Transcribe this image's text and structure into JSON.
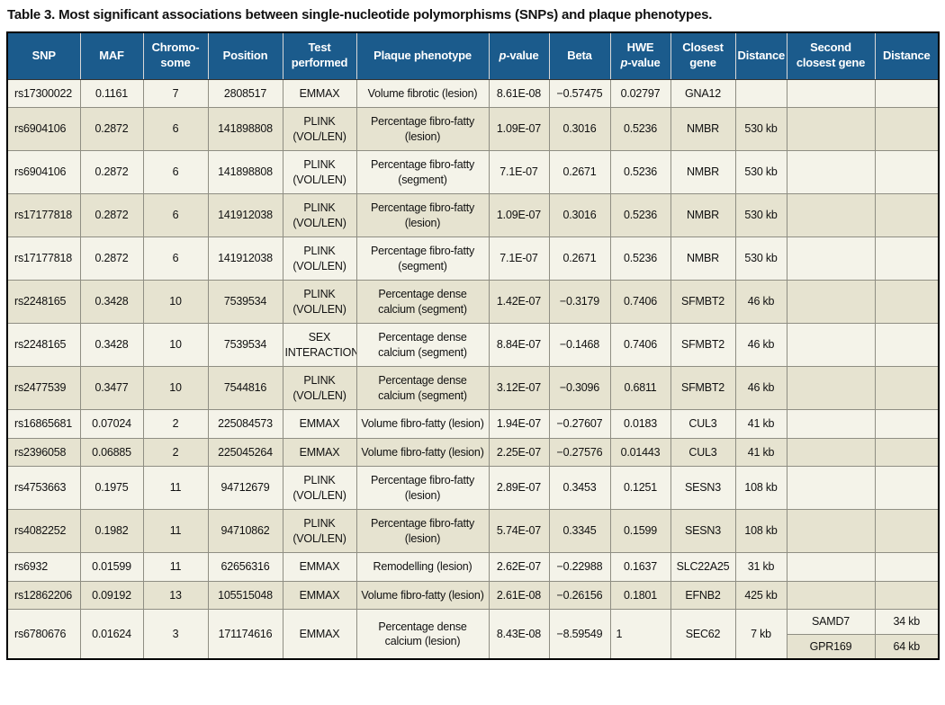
{
  "title": "Table 3. Most significant associations between single-nucleotide polymorphisms (SNPs) and plaque phenotypes.",
  "colors": {
    "header_bg": "#1b5b8c",
    "header_text": "#ffffff",
    "row_light": "#f4f3e9",
    "row_beige": "#e6e3d0",
    "grid": "#8f8e83",
    "outer_border": "#000000"
  },
  "table": {
    "columns": [
      {
        "name": "snp",
        "lines": [
          [
            {
              "t": "SNP"
            }
          ]
        ]
      },
      {
        "name": "maf",
        "lines": [
          [
            {
              "t": "MAF"
            }
          ]
        ]
      },
      {
        "name": "chromosome",
        "lines": [
          [
            {
              "t": "Chromo-"
            }
          ],
          [
            {
              "t": "some"
            }
          ]
        ]
      },
      {
        "name": "position",
        "lines": [
          [
            {
              "t": "Position"
            }
          ]
        ]
      },
      {
        "name": "test-performed",
        "lines": [
          [
            {
              "t": "Test"
            }
          ],
          [
            {
              "t": "performed"
            }
          ]
        ]
      },
      {
        "name": "plaque-phenotype",
        "lines": [
          [
            {
              "t": "Plaque phenotype"
            }
          ]
        ]
      },
      {
        "name": "p-value",
        "lines": [
          [
            {
              "t": "p",
              "i": true
            },
            {
              "t": "-value"
            }
          ]
        ]
      },
      {
        "name": "beta",
        "lines": [
          [
            {
              "t": "Beta"
            }
          ]
        ]
      },
      {
        "name": "hwe-p-value",
        "lines": [
          [
            {
              "t": "HWE"
            }
          ],
          [
            {
              "t": "p",
              "i": true
            },
            {
              "t": "-value"
            }
          ]
        ]
      },
      {
        "name": "closest-gene",
        "lines": [
          [
            {
              "t": "Closest"
            }
          ],
          [
            {
              "t": "gene"
            }
          ]
        ]
      },
      {
        "name": "distance",
        "lines": [
          [
            {
              "t": "Distance"
            }
          ]
        ]
      },
      {
        "name": "second-closest-gene",
        "lines": [
          [
            {
              "t": "Second"
            }
          ],
          [
            {
              "t": "closest gene"
            }
          ]
        ]
      },
      {
        "name": "distance-2",
        "lines": [
          [
            {
              "t": "Distance"
            }
          ]
        ]
      }
    ],
    "rows": [
      {
        "cells": [
          "rs17300022",
          "0.1161",
          "7",
          "2808517",
          "EMMAX",
          "Volume fibrotic (lesion)",
          "8.61E-08",
          "−0.57475",
          "0.02797",
          "GNA12",
          "",
          "",
          ""
        ]
      },
      {
        "cells": [
          "rs6904106",
          "0.2872",
          "6",
          "141898808",
          "PLINK (VOL/LEN)",
          "Percentage fibro-fatty (lesion)",
          "1.09E-07",
          "0.3016",
          "0.5236",
          "NMBR",
          "530 kb",
          "",
          ""
        ]
      },
      {
        "cells": [
          "rs6904106",
          "0.2872",
          "6",
          "141898808",
          "PLINK (VOL/LEN)",
          "Percentage fibro-fatty (segment)",
          "7.1E-07",
          "0.2671",
          "0.5236",
          "NMBR",
          "530 kb",
          "",
          ""
        ]
      },
      {
        "cells": [
          "rs17177818",
          "0.2872",
          "6",
          "141912038",
          "PLINK (VOL/LEN)",
          "Percentage fibro-fatty (lesion)",
          "1.09E-07",
          "0.3016",
          "0.5236",
          "NMBR",
          "530 kb",
          "",
          ""
        ]
      },
      {
        "cells": [
          "rs17177818",
          "0.2872",
          "6",
          "141912038",
          "PLINK (VOL/LEN)",
          "Percentage fibro-fatty (segment)",
          "7.1E-07",
          "0.2671",
          "0.5236",
          "NMBR",
          "530 kb",
          "",
          ""
        ]
      },
      {
        "cells": [
          "rs2248165",
          "0.3428",
          "10",
          "7539534",
          "PLINK (VOL/LEN)",
          "Percentage dense calcium (segment)",
          "1.42E-07",
          "−0.3179",
          "0.7406",
          "SFMBT2",
          "46 kb",
          "",
          ""
        ]
      },
      {
        "cells": [
          "rs2248165",
          "0.3428",
          "10",
          "7539534",
          "SEX INTERACTION",
          "Percentage dense calcium (segment)",
          "8.84E-07",
          "−0.1468",
          "0.7406",
          "SFMBT2",
          "46 kb",
          "",
          ""
        ]
      },
      {
        "cells": [
          "rs2477539",
          "0.3477",
          "10",
          "7544816",
          "PLINK (VOL/LEN)",
          "Percentage dense calcium (segment)",
          "3.12E-07",
          "−0.3096",
          "0.6811",
          "SFMBT2",
          "46 kb",
          "",
          ""
        ]
      },
      {
        "cells": [
          "rs16865681",
          "0.07024",
          "2",
          "225084573",
          "EMMAX",
          "Volume fibro-fatty (lesion)",
          "1.94E-07",
          "−0.27607",
          "0.0183",
          "CUL3",
          "41 kb",
          "",
          ""
        ]
      },
      {
        "cells": [
          "rs2396058",
          "0.06885",
          "2",
          "225045264",
          "EMMAX",
          "Volume fibro-fatty (lesion)",
          "2.25E-07",
          "−0.27576",
          "0.01443",
          "CUL3",
          "41 kb",
          "",
          ""
        ]
      },
      {
        "cells": [
          "rs4753663",
          "0.1975",
          "11",
          "94712679",
          "PLINK (VOL/LEN)",
          "Percentage fibro-fatty (lesion)",
          "2.89E-07",
          "0.3453",
          "0.1251",
          "SESN3",
          "108 kb",
          "",
          ""
        ]
      },
      {
        "cells": [
          "rs4082252",
          "0.1982",
          "11",
          "94710862",
          "PLINK (VOL/LEN)",
          "Percentage fibro-fatty (lesion)",
          "5.74E-07",
          "0.3345",
          "0.1599",
          "SESN3",
          "108 kb",
          "",
          ""
        ]
      },
      {
        "cells": [
          "rs6932",
          "0.01599",
          "11",
          "62656316",
          "EMMAX",
          "Remodelling (lesion)",
          "2.62E-07",
          "−0.22988",
          "0.1637",
          "SLC22A25",
          "31 kb",
          "",
          ""
        ]
      },
      {
        "cells": [
          "rs12862206",
          "0.09192",
          "13",
          "105515048",
          "EMMAX",
          "Volume fibro-fatty (lesion)",
          "2.61E-08",
          "−0.26156",
          "0.1801",
          "EFNB2",
          "425 kb",
          "",
          ""
        ]
      },
      {
        "cells": [
          "rs6780676",
          "0.01624",
          "3",
          "171174616",
          "EMMAX",
          "Percentage dense calcium (lesion)",
          "8.43E-08",
          "−8.59549",
          "1",
          "SEC62",
          "7 kb"
        ],
        "sub": [
          [
            "SAMD7",
            "34 kb"
          ],
          [
            "GPR169",
            "64 kb"
          ]
        ],
        "hwe_left_aligned": true
      }
    ]
  }
}
